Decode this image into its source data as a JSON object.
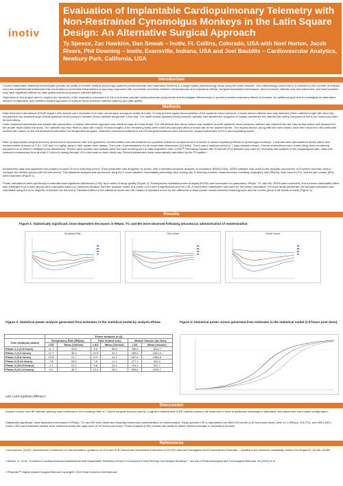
{
  "logo": {
    "text": "inotiv"
  },
  "title": "Evaluation of Implantable Cardiopulmonary Telemetry with Non-Restrained Cynomolgus Monkeys in the Latin Square Design: An Alternative Surgical Approach",
  "authors": "Ty Speece, Zac Hawkins, Dan Smeak – Inotiv, Ft. Collins, Colorado, USA with Noel Horton, Jacob Rivers, Phil Downing – Inotiv, Evansville, Indiana, USA and Joel Baublits – Cardiovascular Analytics, Newbury Park, California, USA",
  "sections": {
    "introduction": "Introduction",
    "methods": "Methods",
    "results": "Results",
    "discussion": "Discussion",
    "references": "References"
  },
  "intro_text": [
    "Current implantable telemetry technologies provide the ability to monitor multiple physiologic systems (cardiovascular and respiratory function) in a single safety pharmacology study using the same animals. This methodology could lead to a reduction in the number of animals used and experimental refinement that would allow a connected interpretation of any drug responses with a potential correlation between cardiovascular and respiratory effects. Surgical implantation techniques, blood pressure catheter size and placement, and lead locations may have significant effects on data quality and blood pressure catheter patency.",
    "Objectives of this project were to explore the sensitivity of the respiratory component in the non-human primate cardiopulmonary study model and investigate effectiveness to predict potential respiratory effects in humans. An additional goal was to investigate an alternative implant configuration and modified surgical approach to improve blood pressure catheter patency and data quality."
  ],
  "methods_text": [
    "Data Sciences International (DSI)® digital L11R devices were implanted in 6 male cynomolgus macaques onsite at Inotiv. To help prevent signal decomposition of the systemic blood pressure, a small animal catheter size was selected (15cm catheter length with 6mm tip) compared to the standard large animal systemic blood pressure catheter (40cm catheter length with 12mm tip). The small animal systemic blood pressure catheter size allowed the surgeons to readily catheterize the internal iliac artery compared to the more commonly used femoral artery.",
    "Under balanced anesthesia and aseptic site preparation, a midline abdominal approach was made through an incise drape. The left internal iliac artery branch was isolated, and the systemic blood pressure catheter was inserted into the internal iliac artery and advanced to the proper depth within the aorta. The catheter was then fixed in place with suture. Excess lengths of the remaining leads were coiled and secured within a suture tab on the implant device. The implant device, along with the coiled leads, were then secured to the peritoneal surface with suture on the left abdominal wall within the intraperitoneal space. Standard procedures outlined in the DSI surgical handbook were followed for surgical placement of ECG and respiratory leads.",
    "After an appropriate surgical recovery period and in accordance with ICH guidelines, medetomidine was administered as a positive reference compound as it is known to cause respiratory effects in cynomolgus monkeys. 4 animals were administered sterile saline and medetomidine at doses of 0.01, 0.02 and 0.4 mg/kg using a Latin square dose design. The route of administration for all doses was intravenous (IV) bolus. There was a washout period of 7 days between doses. Clinical observations were made using video monitoring equipment in an effort to mitigate room disturbance. Rooms were cleaned and animals were fed each morning prior to data acquisition start. A DSI™ Recording System with Ponemah (P3) software was used for recording and analysis of the physiological data. Data was collected continuously from at least 2 h prior to dosing through 24 h post dose on each study day. Derived parameters were automatically calculated by the P3 system.",
    "All telemetry data was organized into phases for each 24-hour collection period. Each parameter was analyzed, by phase, with a repeated measure analysis of covariance (RANCOVA). SAS® software was used for the analysis procedures. A Dunnett's test was used to compare the treated groups with vehicle control. This statistical analysis was performed using the 2 hours baseline immediately preceding each dosing day. Pulmonary function measurements, including respiratory rate (RRpm), tidal volume (TV), and minute volume (MV), were examined (Figure 1).",
    "Power calculations were performed to estimate least significant differences (LSD) as a metric of study quality (Figure 2). Retrospective statistical power analysis (RSPA) was conducted on parameters: RRpm, TV, and MV. RSPA was conducted, and minimum detectable effect size (changes from control group) were calculated based on observed variance from the analysis model at a power of 0.8 and a significance level of 0.05. A noncentral t distribution was used for the power calculation. For each study parameter, the standard deviation was calculated using the error degrees of freedom for the test of Treatment effect in the statistical model and the median of standard errors for the difference in least square means between treated groups and the control group in all blocks of study (Figure 3)."
  ],
  "figures": {
    "fig1_caption": "Figure 1: Statistically significant, dose-dependent decreases in RRpm, TV, and MV were observed following intravenous administration of medetomidine.",
    "fig2_caption": "Figure 2: Statistical power analysis generated from estimates in the statistical model by analysis Phase.",
    "fig3_caption": "Figure 3: Statistical power curves generated from estimates in the statistical model (1-8 hours post dose).",
    "chart1_title": "Respiratory Rate",
    "chart2_title": "Tidal Volume",
    "chart3_title": "Minute Volume"
  },
  "power_table": {
    "group_header": "Power analysis (n=4)",
    "col_phase": "Time (Analysis phase)",
    "col_rr": "Respiratory Rate (RRpm)",
    "col_tv": "Tidal Volume (mL)",
    "col_mv": "Minute Volume (mL/min)",
    "sub_lsd": "LSD",
    "sub_mean": "Mean (Vehicle)",
    "rows": [
      {
        "phase": "Phase 1-2 (1-8 hours)",
        "v": [
          "11.1",
          "43.8",
          "8.8",
          "38.8",
          "455.6",
          "1811.2"
        ]
      },
      {
        "phase": "Phase 1 (1-4 hours)",
        "v": [
          "12.7",
          "45.9",
          "10.5",
          "42.4",
          "459.8",
          "1841.6"
        ]
      },
      {
        "phase": "Phase 2 (5-8 hours)",
        "v": [
          "10.8",
          "41.7",
          "8.4",
          "31.1",
          "507.6",
          "1380.8"
        ]
      },
      {
        "phase": "Phase 3 (9-14 hours)",
        "v": [
          "7.8",
          "25.0",
          "7.8",
          "17.1",
          "277.1",
          "441.3"
        ]
      },
      {
        "phase": "Phase 4 (15-20 hours)",
        "v": [
          "4.1",
          "23.1",
          "6.8",
          "19.4",
          "124.1",
          "531.7"
        ]
      },
      {
        "phase": "Phase 5 (21-24 hours)",
        "v": [
          "9.2",
          "48.7",
          "10.4",
          "49.4",
          "859.8",
          "2096.7"
        ]
      }
    ]
  },
  "lsd_note": "LSD: Least significant difference.",
  "discussion_text": [
    "Implant function and BP catheter patency was confirmed in all 6 monkeys after a 7-month surgical recovery period. Long-term assessment of BP catheter patency will determine if there is additional advantage to alternative iliac placement and implant configuration.",
    "Statistically significant, dose-dependent decreases in RRpm, TV, and MV were observed following intravenous administration of medetomidine. Study specific LSD's, calculated from ANCOVA model (1-8 hours post dose), were 11.1 (RRpm), 8.8 (TV), and 455.6 (MV). Lower LSD's (and baseline values) were observed during the night cycle (9-20 hours post dose). Power analysis (LSD) showed the ability to detect relevant changes in respiratory function."
  ],
  "references": [
    "Anonymous. (2022). International Conference on Harmonisation; guidance on E14 and S7B Clinical and Nonclinical Evaluation of QT/QTc Interval Prolongation and Proarrhythmic Potential – Questions and Answers; availability. Notice Fed Regist 87, 52786–52788.",
    "Authier, S., et al. \"Combined Cardiopulmonary Assessments with Implantable Telemetry Device in Conscious Freely Moving Cynomolgus Monkeys.\" Journal of Pharmacological and Toxicological Methods. 62 (2010) 6-11.",
    "Physiotel™ Digital Implant Surgical Manual Copyright© 2019 Data Sciences International"
  ],
  "colors": {
    "accent": "#e07a2c",
    "logo": "#e8761e"
  }
}
